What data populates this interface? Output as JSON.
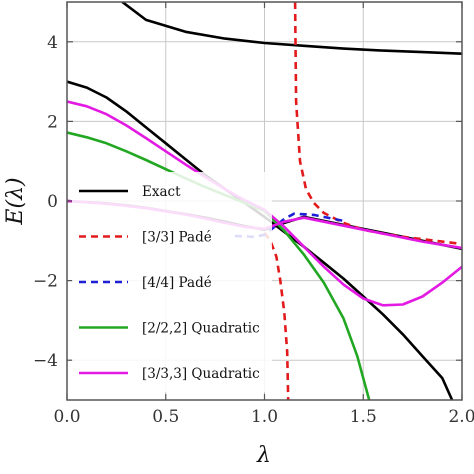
{
  "chart_data": {
    "type": "line",
    "title": "",
    "xlabel": "λ",
    "ylabel": "E(λ)",
    "xlim": [
      0,
      2
    ],
    "ylim": [
      -5,
      5
    ],
    "grid": true,
    "legend_position": "left",
    "x_ticks": [
      "0.0",
      "0.5",
      "1.0",
      "1.5",
      "2.0"
    ],
    "y_ticks": [
      "4",
      "2",
      "0",
      "−2",
      "−4"
    ],
    "x_tick_values": [
      0,
      0.5,
      1,
      1.5,
      2
    ],
    "y_tick_values": [
      4,
      2,
      0,
      -2,
      -4
    ],
    "series": [
      {
        "name": "Exact",
        "color": "#000000",
        "dash": "solid",
        "segments": [
          [
            [
              0.28,
              5.0
            ],
            [
              0.4,
              4.55
            ],
            [
              0.6,
              4.25
            ],
            [
              0.8,
              4.08
            ],
            [
              1.0,
              3.97
            ],
            [
              1.2,
              3.9
            ],
            [
              1.4,
              3.83
            ],
            [
              1.6,
              3.78
            ],
            [
              1.8,
              3.74
            ],
            [
              2.0,
              3.7
            ]
          ],
          [
            [
              0,
              3.0
            ],
            [
              0.1,
              2.85
            ],
            [
              0.2,
              2.6
            ],
            [
              0.3,
              2.25
            ],
            [
              0.4,
              1.85
            ],
            [
              0.5,
              1.45
            ],
            [
              0.6,
              1.05
            ],
            [
              0.7,
              0.65
            ],
            [
              0.8,
              0.3
            ],
            [
              0.9,
              -0.05
            ],
            [
              1.0,
              -0.4
            ],
            [
              1.1,
              -0.78
            ],
            [
              1.2,
              -1.15
            ],
            [
              1.3,
              -1.55
            ],
            [
              1.4,
              -1.95
            ],
            [
              1.5,
              -2.4
            ],
            [
              1.6,
              -2.85
            ],
            [
              1.7,
              -3.35
            ],
            [
              1.8,
              -3.9
            ],
            [
              1.9,
              -4.45
            ],
            [
              1.95,
              -5.0
            ]
          ],
          [
            [
              0,
              0
            ],
            [
              0.1,
              -0.03
            ],
            [
              0.2,
              -0.06
            ],
            [
              0.3,
              -0.11
            ],
            [
              0.4,
              -0.17
            ],
            [
              0.5,
              -0.25
            ],
            [
              0.6,
              -0.33
            ],
            [
              0.7,
              -0.42
            ],
            [
              0.8,
              -0.52
            ],
            [
              0.9,
              -0.63
            ],
            [
              1.0,
              -0.72
            ],
            [
              1.1,
              -0.55
            ],
            [
              1.2,
              -0.4
            ],
            [
              1.3,
              -0.5
            ],
            [
              1.4,
              -0.6
            ],
            [
              1.5,
              -0.7
            ],
            [
              1.6,
              -0.8
            ],
            [
              1.7,
              -0.9
            ],
            [
              1.8,
              -1.0
            ],
            [
              1.9,
              -1.1
            ],
            [
              2.0,
              -1.2
            ]
          ]
        ]
      },
      {
        "name": "[3/3] Padé",
        "color": "#e31a1c",
        "dash": "dashed",
        "segments": [
          [
            [
              1.155,
              5.0
            ],
            [
              1.16,
              2.5
            ],
            [
              1.18,
              1.0
            ],
            [
              1.21,
              0.3
            ],
            [
              1.25,
              -0.05
            ],
            [
              1.3,
              -0.3
            ],
            [
              1.4,
              -0.55
            ],
            [
              1.5,
              -0.72
            ],
            [
              1.6,
              -0.82
            ],
            [
              1.7,
              -0.9
            ],
            [
              1.8,
              -0.96
            ],
            [
              1.9,
              -1.02
            ],
            [
              2.0,
              -1.08
            ]
          ],
          [
            [
              1.0,
              -0.8
            ],
            [
              1.03,
              -1.0
            ],
            [
              1.06,
              -1.4
            ],
            [
              1.08,
              -2.0
            ],
            [
              1.1,
              -2.8
            ],
            [
              1.115,
              -3.8
            ],
            [
              1.12,
              -5.0
            ]
          ]
        ]
      },
      {
        "name": "[4/4] Padé",
        "color": "#1f1fd6",
        "dash": "dashed",
        "segments": [
          [
            [
              0.85,
              -0.88
            ],
            [
              0.95,
              -0.9
            ],
            [
              1.0,
              -0.85
            ],
            [
              1.05,
              -0.65
            ],
            [
              1.1,
              -0.45
            ],
            [
              1.15,
              -0.32
            ],
            [
              1.25,
              -0.35
            ],
            [
              1.4,
              -0.5
            ]
          ]
        ]
      },
      {
        "name": "[2/2,2] Quadratic",
        "color": "#22a722",
        "dash": "solid",
        "segments": [
          [
            [
              0,
              1.72
            ],
            [
              0.1,
              1.6
            ],
            [
              0.2,
              1.45
            ],
            [
              0.3,
              1.25
            ],
            [
              0.4,
              1.03
            ],
            [
              0.5,
              0.8
            ],
            [
              0.6,
              0.57
            ],
            [
              0.7,
              0.35
            ],
            [
              0.8,
              0.15
            ],
            [
              0.9,
              -0.05
            ],
            [
              1.0,
              -0.25
            ],
            [
              1.1,
              -0.75
            ],
            [
              1.2,
              -1.35
            ],
            [
              1.3,
              -2.05
            ],
            [
              1.4,
              -2.95
            ],
            [
              1.47,
              -3.9
            ],
            [
              1.53,
              -5.0
            ]
          ]
        ]
      },
      {
        "name": "[3/3,3] Quadratic",
        "color": "#e31ae3",
        "dash": "solid",
        "segments": [
          [
            [
              0,
              2.5
            ],
            [
              0.1,
              2.38
            ],
            [
              0.2,
              2.18
            ],
            [
              0.3,
              1.9
            ],
            [
              0.4,
              1.58
            ],
            [
              0.5,
              1.25
            ],
            [
              0.6,
              0.92
            ],
            [
              0.7,
              0.6
            ],
            [
              0.8,
              0.3
            ],
            [
              0.9,
              0.02
            ],
            [
              1.0,
              -0.22
            ],
            [
              1.1,
              -0.65
            ],
            [
              1.2,
              -1.15
            ],
            [
              1.3,
              -1.65
            ],
            [
              1.4,
              -2.1
            ],
            [
              1.5,
              -2.45
            ],
            [
              1.6,
              -2.62
            ],
            [
              1.7,
              -2.6
            ],
            [
              1.8,
              -2.4
            ],
            [
              1.9,
              -2.05
            ],
            [
              2.0,
              -1.65
            ]
          ],
          [
            [
              0,
              0
            ],
            [
              0.1,
              -0.03
            ],
            [
              0.2,
              -0.07
            ],
            [
              0.3,
              -0.12
            ],
            [
              0.4,
              -0.18
            ],
            [
              0.5,
              -0.26
            ],
            [
              0.6,
              -0.34
            ],
            [
              0.7,
              -0.44
            ],
            [
              0.8,
              -0.55
            ],
            [
              0.9,
              -0.65
            ],
            [
              1.0,
              -0.7
            ],
            [
              1.1,
              -0.52
            ],
            [
              1.2,
              -0.42
            ],
            [
              1.3,
              -0.52
            ],
            [
              1.4,
              -0.62
            ],
            [
              1.5,
              -0.72
            ],
            [
              1.6,
              -0.82
            ],
            [
              1.7,
              -0.92
            ],
            [
              1.8,
              -1.02
            ],
            [
              1.9,
              -1.1
            ],
            [
              2.0,
              -1.18
            ]
          ]
        ]
      }
    ]
  }
}
